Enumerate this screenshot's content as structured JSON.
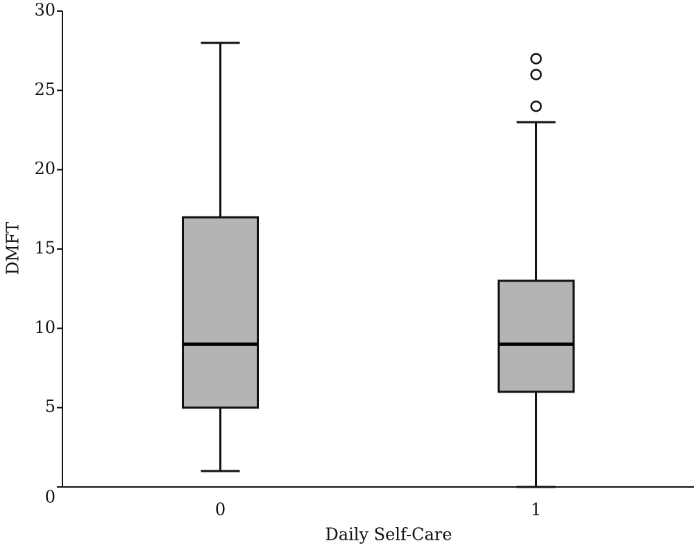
{
  "chart_data": {
    "type": "box",
    "x_label": "Daily Self-Care",
    "y_label": "DMFT",
    "categories": [
      "0",
      "1"
    ],
    "boxes": [
      {
        "whisker_low": 1,
        "q1": 5,
        "median": 9,
        "q3": 17,
        "whisker_high": 28,
        "outliers": []
      },
      {
        "whisker_low": 0,
        "q1": 6,
        "median": 9,
        "q3": 13,
        "whisker_high": 23,
        "outliers": [
          24,
          26,
          27
        ]
      }
    ],
    "color": "#b4b4b4",
    "ylim": [
      0,
      30
    ],
    "yticks": [
      0,
      5,
      10,
      15,
      20,
      25,
      30
    ],
    "grid": false
  }
}
